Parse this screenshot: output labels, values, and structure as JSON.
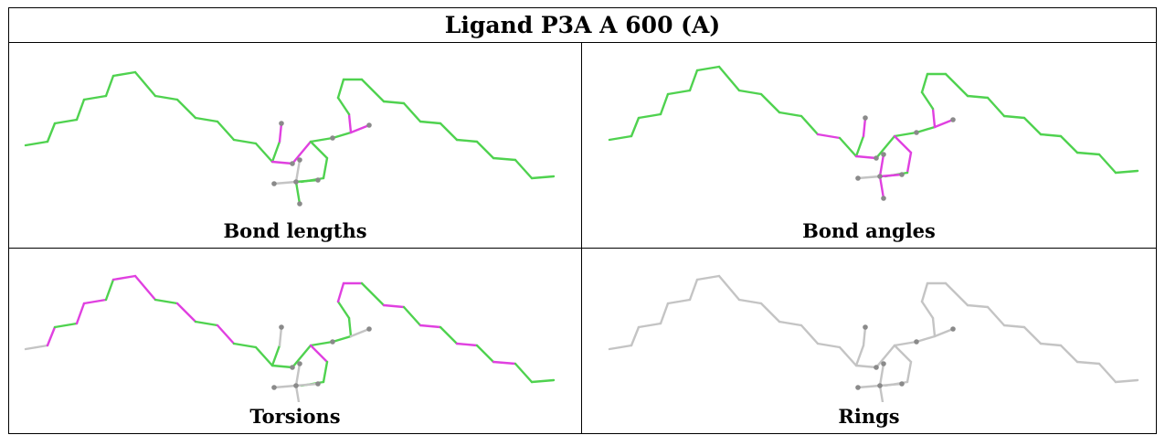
{
  "title": "Ligand P3A A 600 (A)",
  "panels": [
    {
      "caption": "Bond lengths",
      "bond_colors": [
        "green",
        "magenta"
      ]
    },
    {
      "caption": "Bond angles",
      "bond_colors": [
        "green",
        "magenta"
      ]
    },
    {
      "caption": "Torsions",
      "bond_colors": [
        "green",
        "magenta",
        "grey"
      ]
    },
    {
      "caption": "Rings",
      "bond_colors": [
        "grey"
      ]
    }
  ],
  "colors": {
    "green": "#4fd24f",
    "magenta": "#e040e0",
    "grey": "#c4c4c4",
    "atom": "#8a8a8a"
  }
}
